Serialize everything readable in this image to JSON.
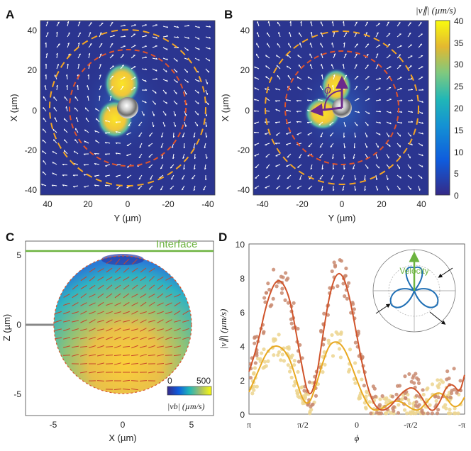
{
  "panels": {
    "A": {
      "letter": "A",
      "x_label": "Y (µm)",
      "y_label": "X (µm)",
      "x_ticks": [
        "40",
        "20",
        "0",
        "-20",
        "-40"
      ],
      "y_ticks": [
        "40",
        "20",
        "0",
        "-20",
        "-40"
      ]
    },
    "B": {
      "letter": "B",
      "x_label": "Y (µm)",
      "y_label": "X (µm)",
      "x_ticks": [
        "-40",
        "-20",
        "0",
        "20",
        "40"
      ],
      "y_ticks": [
        "40",
        "20",
        "0",
        "-20",
        "-40"
      ],
      "phi_label": "ϕ"
    },
    "colorbar": {
      "label": "|v∥| (µm/s)",
      "ticks": [
        "40",
        "35",
        "30",
        "25",
        "20",
        "15",
        "10",
        "5",
        "0"
      ],
      "range": [
        0,
        40
      ]
    },
    "C": {
      "letter": "C",
      "interface_label": "Interface",
      "x_label": "X (µm)",
      "y_label": "Z (µm)",
      "x_ticks": [
        "-5",
        "0",
        "5"
      ],
      "y_ticks": [
        "5",
        "0",
        "-5"
      ],
      "inset_cbar": {
        "min": "0",
        "max": "500",
        "label": "|vb| (µm/s)"
      }
    },
    "D": {
      "letter": "D",
      "x_label": "ϕ",
      "y_label": "|v∥| (µm/s)",
      "x_ticks": [
        "π",
        "π/2",
        "0",
        "-π/2",
        "-π"
      ],
      "y_ticks": [
        "10",
        "8",
        "6",
        "4",
        "2",
        "0"
      ],
      "inset_label": "Velocity"
    }
  },
  "colors": {
    "background_field": "#2b2f86",
    "dash_yellow": "#f5a623",
    "dash_red": "#e0532a",
    "arrow_purple": "#6b2a8c",
    "interface_green": "#6cb33f",
    "curve_dark": "#d0542b",
    "curve_light": "#e8a820",
    "dots_dark": "#c98a70",
    "dots_light": "#ecd58f",
    "inset_blue": "#1f6fb5",
    "inset_green": "#6cb33f"
  },
  "chart_data": [
    {
      "type": "line",
      "panel": "D",
      "title": "",
      "xlabel": "ϕ",
      "ylabel": "|v∥| (µm/s)",
      "xlim": [
        3.1416,
        -3.1416
      ],
      "ylim": [
        0,
        10
      ],
      "x_tick_labels": [
        "π",
        "π/2",
        "0",
        "-π/2",
        "-π"
      ],
      "series": [
        {
          "name": "fit-dark",
          "x": [
            3.14,
            2.9,
            2.6,
            2.3,
            2.0,
            1.8,
            1.6,
            1.4,
            1.2,
            1.0,
            0.8,
            0.6,
            0.4,
            0.2,
            0.0,
            -0.2,
            -0.4,
            -0.6,
            -0.8,
            -1.0,
            -1.2,
            -1.4,
            -1.6,
            -1.8,
            -2.0,
            -2.2,
            -2.4,
            -2.6,
            -2.8,
            -3.0,
            -3.14
          ],
          "y": [
            2.5,
            4.0,
            6.8,
            8.1,
            7.2,
            5.2,
            2.8,
            0.9,
            1.8,
            4.5,
            7.0,
            8.3,
            8.2,
            6.8,
            4.6,
            2.5,
            1.0,
            0.3,
            0.2,
            0.5,
            1.0,
            1.4,
            1.6,
            1.3,
            0.6,
            0.1,
            0.6,
            1.6,
            1.8,
            1.2,
            2.3
          ]
        },
        {
          "name": "fit-light",
          "x": [
            3.14,
            2.9,
            2.6,
            2.3,
            2.0,
            1.8,
            1.6,
            1.4,
            1.2,
            1.0,
            0.8,
            0.6,
            0.4,
            0.2,
            0.0,
            -0.2,
            -0.4,
            -0.6,
            -0.8,
            -1.0,
            -1.2,
            -1.4,
            -1.6,
            -1.8,
            -2.0,
            -2.2,
            -2.4,
            -2.6,
            -2.8,
            -3.0,
            -3.14
          ],
          "y": [
            1.3,
            2.4,
            3.8,
            4.1,
            3.5,
            2.3,
            0.9,
            0.5,
            1.6,
            3.0,
            4.1,
            4.3,
            4.0,
            3.1,
            2.0,
            1.0,
            0.3,
            0.2,
            0.4,
            0.7,
            0.8,
            0.6,
            0.3,
            0.2,
            0.6,
            1.1,
            1.3,
            1.0,
            0.4,
            0.5,
            1.0
          ]
        }
      ]
    },
    {
      "type": "heatmap",
      "panel": "colorbar",
      "title": "",
      "label": "|v∥| (µm/s)",
      "zlim": [
        0,
        40
      ]
    }
  ]
}
